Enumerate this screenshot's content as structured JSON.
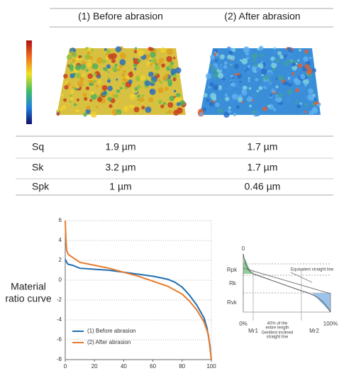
{
  "table": {
    "header": [
      "(1) Before abrasion",
      "(2) After abrasion"
    ],
    "rows": [
      [
        "Sq",
        "1.9 µm",
        "1.7 µm"
      ],
      [
        "Sk",
        "3.2 µm",
        "1.7 µm"
      ],
      [
        "Spk",
        "1 µm",
        "0.46 µm"
      ]
    ]
  },
  "chart_data": {
    "type": "line",
    "ylabel": [
      "Material",
      "ratio curve"
    ],
    "series": [
      {
        "name": "(1) Before abrasion",
        "color": "#1f6fb2",
        "x": [
          0,
          1,
          2,
          5,
          10,
          20,
          30,
          40,
          50,
          60,
          70,
          75,
          80,
          85,
          90,
          95,
          97,
          99,
          100
        ],
        "values": [
          2.1,
          1.8,
          1.6,
          1.5,
          1.2,
          1.1,
          1.0,
          0.8,
          0.6,
          0.4,
          0.1,
          -0.2,
          -0.7,
          -1.5,
          -2.5,
          -3.8,
          -4.8,
          -6.5,
          -8
        ]
      },
      {
        "name": "(2) After abrasion",
        "color": "#e87a2c",
        "x": [
          0,
          0.5,
          1,
          2,
          5,
          10,
          20,
          30,
          40,
          50,
          60,
          70,
          80,
          85,
          90,
          95,
          98,
          100
        ],
        "values": [
          6,
          4,
          3,
          2.6,
          2.3,
          1.8,
          1.5,
          1.2,
          0.8,
          0.4,
          -0.1,
          -0.6,
          -1.4,
          -2.1,
          -3.0,
          -4.2,
          -5.5,
          -8
        ]
      }
    ],
    "xlim": [
      0,
      100
    ],
    "xticks": [
      0,
      20,
      40,
      60,
      80,
      100
    ],
    "ylim": [
      -8,
      6
    ],
    "yticks": [
      -8,
      -6,
      -4,
      -2,
      0,
      2,
      4,
      6
    ],
    "grid": true,
    "legend": "lower left"
  },
  "diagram": {
    "origin": "0",
    "rpk": "Rpk",
    "rk": "Rk",
    "rvk": "Rvk",
    "equivalent": "Equivalent straight line",
    "start": "0%",
    "mr1": "Mr1",
    "length": [
      "40% of the",
      "entire length"
    ],
    "gentlest": [
      "Gentlest inclined",
      "straight line"
    ],
    "mr2": "Mr2",
    "end": "100%"
  }
}
